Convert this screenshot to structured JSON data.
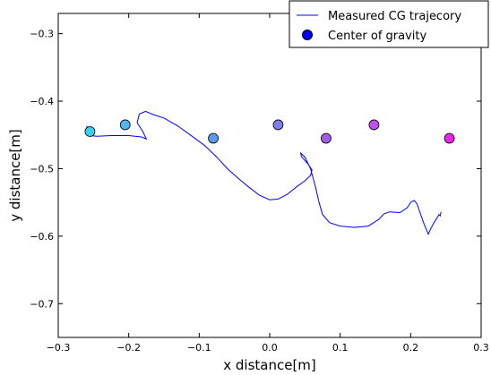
{
  "chart_data": {
    "type": "scatter",
    "xlabel": "x distance[m]",
    "ylabel": "y distance[m]",
    "xlim": [
      -0.3,
      0.3
    ],
    "ylim": [
      -0.75,
      -0.27
    ],
    "xticks": [
      -0.3,
      -0.2,
      -0.1,
      0.0,
      0.1,
      0.2,
      0.3
    ],
    "xtick_labels": [
      "−0.3",
      "−0.2",
      "−0.1",
      "0.0",
      "0.1",
      "0.2",
      "0.3"
    ],
    "yticks": [
      -0.3,
      -0.4,
      -0.5,
      -0.6,
      -0.7
    ],
    "ytick_labels": [
      "−0.3",
      "−0.4",
      "−0.5",
      "−0.6",
      "−0.7"
    ],
    "grid": false,
    "legend": {
      "position": "top-right",
      "entries": [
        {
          "label": "Measured CG trajecory",
          "kind": "line",
          "color": "#0000ff"
        },
        {
          "label": "Center of gravity",
          "kind": "marker",
          "color": "#0000ff"
        }
      ]
    },
    "series": [
      {
        "name": "Measured CG trajecory",
        "kind": "line",
        "color": "#0000ff",
        "points": [
          [
            -0.26,
            -0.437
          ],
          [
            -0.258,
            -0.44
          ],
          [
            -0.257,
            -0.445
          ],
          [
            -0.258,
            -0.45
          ],
          [
            -0.255,
            -0.451
          ],
          [
            -0.245,
            -0.452
          ],
          [
            -0.225,
            -0.451
          ],
          [
            -0.2,
            -0.451
          ],
          [
            -0.182,
            -0.453
          ],
          [
            -0.175,
            -0.456
          ],
          [
            -0.18,
            -0.445
          ],
          [
            -0.188,
            -0.432
          ],
          [
            -0.185,
            -0.419
          ],
          [
            -0.176,
            -0.415
          ],
          [
            -0.165,
            -0.42
          ],
          [
            -0.15,
            -0.425
          ],
          [
            -0.13,
            -0.437
          ],
          [
            -0.11,
            -0.452
          ],
          [
            -0.092,
            -0.466
          ],
          [
            -0.075,
            -0.483
          ],
          [
            -0.06,
            -0.5
          ],
          [
            -0.045,
            -0.514
          ],
          [
            -0.03,
            -0.527
          ],
          [
            -0.015,
            -0.539
          ],
          [
            0.0,
            -0.546
          ],
          [
            0.012,
            -0.545
          ],
          [
            0.025,
            -0.538
          ],
          [
            0.038,
            -0.527
          ],
          [
            0.05,
            -0.518
          ],
          [
            0.058,
            -0.51
          ],
          [
            0.06,
            -0.502
          ],
          [
            0.055,
            -0.494
          ],
          [
            0.045,
            -0.482
          ],
          [
            0.044,
            -0.477
          ],
          [
            0.05,
            -0.483
          ],
          [
            0.058,
            -0.5
          ],
          [
            0.065,
            -0.527
          ],
          [
            0.07,
            -0.55
          ],
          [
            0.075,
            -0.568
          ],
          [
            0.085,
            -0.58
          ],
          [
            0.1,
            -0.585
          ],
          [
            0.12,
            -0.587
          ],
          [
            0.14,
            -0.585
          ],
          [
            0.155,
            -0.575
          ],
          [
            0.162,
            -0.567
          ],
          [
            0.17,
            -0.564
          ],
          [
            0.185,
            -0.565
          ],
          [
            0.195,
            -0.558
          ],
          [
            0.2,
            -0.55
          ],
          [
            0.205,
            -0.547
          ],
          [
            0.209,
            -0.552
          ],
          [
            0.214,
            -0.567
          ],
          [
            0.219,
            -0.582
          ],
          [
            0.223,
            -0.592
          ],
          [
            0.225,
            -0.597
          ],
          [
            0.228,
            -0.59
          ],
          [
            0.233,
            -0.58
          ],
          [
            0.238,
            -0.572
          ],
          [
            0.24,
            -0.568
          ],
          [
            0.242,
            -0.57
          ],
          [
            0.243,
            -0.564
          ]
        ]
      },
      {
        "name": "Center of gravity",
        "kind": "scatter",
        "points": [
          {
            "x": -0.255,
            "y": -0.445,
            "color": "#36d1f0"
          },
          {
            "x": -0.205,
            "y": -0.435,
            "color": "#52b6f2"
          },
          {
            "x": -0.08,
            "y": -0.455,
            "color": "#5c9be8"
          },
          {
            "x": 0.012,
            "y": -0.435,
            "color": "#7f7fe8"
          },
          {
            "x": 0.08,
            "y": -0.455,
            "color": "#a35ae8"
          },
          {
            "x": 0.148,
            "y": -0.435,
            "color": "#c24ff0"
          },
          {
            "x": 0.255,
            "y": -0.455,
            "color": "#ee22ee"
          }
        ]
      }
    ]
  }
}
